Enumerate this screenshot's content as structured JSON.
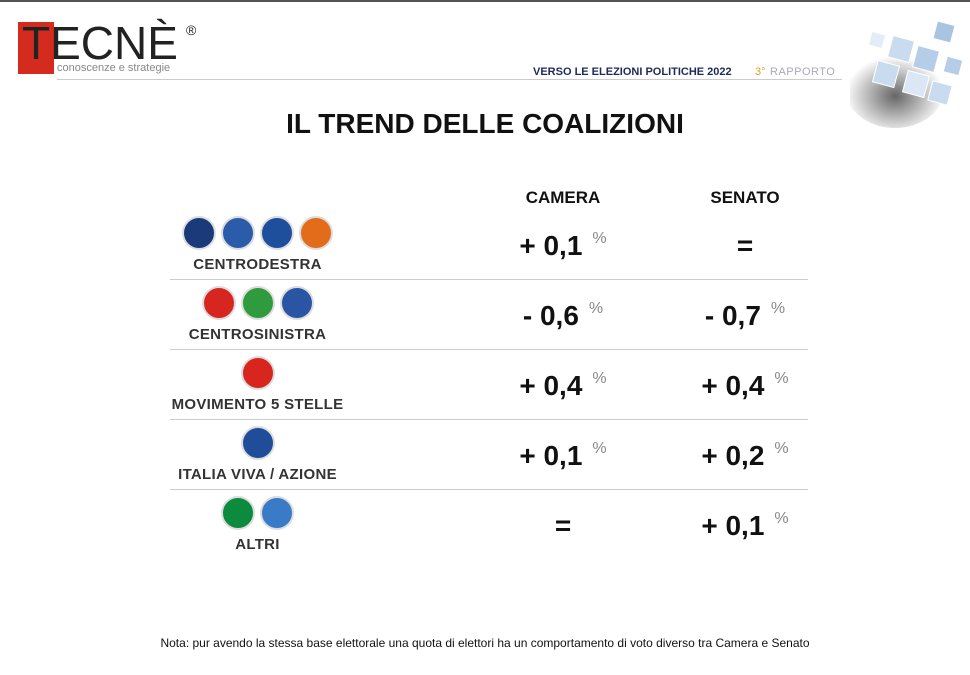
{
  "header": {
    "logo": "TECNÈ",
    "registered": "®",
    "tagline": "conoscenze e strategie",
    "report": "VERSO LE ELEZIONI POLITICHE 2022",
    "edition_number": "3°",
    "edition_label": "RAPPORTO"
  },
  "title": "IL TREND DELLE COALIZIONI",
  "table": {
    "columns": [
      "CAMERA",
      "SENATO"
    ],
    "unit": "%",
    "rows": [
      {
        "name": "CENTRODESTRA",
        "camera": "+ 0,1",
        "senato": "="
      },
      {
        "name": "CENTROSINISTRA",
        "camera": "- 0,6",
        "senato": "- 0,7"
      },
      {
        "name": "MOVIMENTO 5 STELLE",
        "camera": "+ 0,4",
        "senato": "+ 0,4"
      },
      {
        "name": "ITALIA VIVA / AZIONE",
        "camera": "+ 0,1",
        "senato": "+ 0,2"
      },
      {
        "name": "ALTRI",
        "camera": "=",
        "senato": "+ 0,1"
      }
    ]
  },
  "note": "Nota: pur avendo la stessa base elettorale una quota di elettori ha un comportamento di voto diverso tra Camera e Senato"
}
